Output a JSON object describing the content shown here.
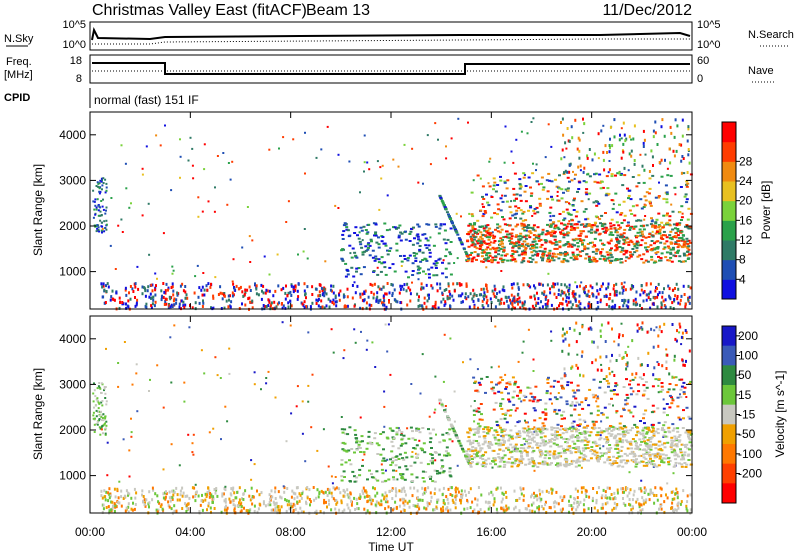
{
  "header": {
    "site": "Christmas Valley East (fitACF)",
    "beam": "Beam 13",
    "date": "11/Dec/2012"
  },
  "strips": {
    "nsky": {
      "label": "N.Sky",
      "tick_hi": "10^5",
      "tick_lo": "10^0",
      "right_label": "N.Search",
      "right_tick_hi": "10^5",
      "right_tick_lo": "10^0"
    },
    "freq": {
      "label_line1": "Freq.",
      "label_line2": "[MHz]",
      "tick_hi": "18",
      "tick_lo": "8",
      "right_label": "Nave",
      "right_tick_hi": "60",
      "right_tick_lo": "0"
    },
    "cpid": {
      "label": "CPID",
      "text": "normal (fast) 151 IF"
    }
  },
  "colors": {
    "power_scale": [
      "#1010e0",
      "#1e4eb4",
      "#2f7a66",
      "#2aa14a",
      "#7ad23a",
      "#e8c020",
      "#f08a10",
      "#ff3c00",
      "#ff0000"
    ],
    "velocity_scale": [
      "#1818c8",
      "#3a5ab8",
      "#2e8a40",
      "#6cc73a",
      "#c8c8c0",
      "#f0a000",
      "#ff7800",
      "#ff4000",
      "#ff0000"
    ]
  },
  "chart_data": [
    {
      "type": "heatmap",
      "title": "Power",
      "ylabel": "Slant Range [km]",
      "y_ticks": [
        1000,
        2000,
        3000,
        4000
      ],
      "ylim": [
        180,
        4500
      ],
      "x_ticks": [
        "00:00",
        "04:00",
        "08:00",
        "12:00",
        "16:00",
        "20:00",
        "00:00"
      ],
      "colorbar": {
        "label": "Power [dB]",
        "ticks": [
          4,
          8,
          12,
          16,
          20,
          24,
          28
        ]
      }
    },
    {
      "type": "heatmap",
      "title": "Velocity",
      "ylabel": "Slant Range [km]",
      "xlabel": "Time UT",
      "y_ticks": [
        1000,
        2000,
        3000,
        4000
      ],
      "ylim": [
        180,
        4500
      ],
      "x_ticks": [
        "00:00",
        "04:00",
        "08:00",
        "12:00",
        "16:00",
        "20:00",
        "00:00"
      ],
      "colorbar": {
        "label": "Velocity [m s^-1]",
        "ticks": [
          200,
          100,
          50,
          15,
          -15,
          -50,
          -100,
          -200
        ]
      }
    }
  ]
}
